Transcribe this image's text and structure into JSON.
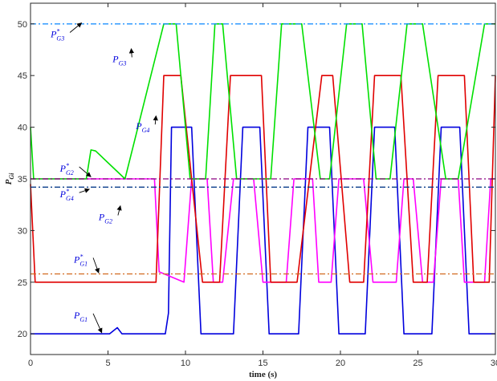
{
  "chart_data": {
    "type": "line",
    "title": "",
    "xlabel": "time (s)",
    "ylabel": {
      "main": "P",
      "sub": "Gi"
    },
    "xlim": [
      0,
      30
    ],
    "ylim": [
      18,
      52
    ],
    "xticks": [
      0,
      5,
      10,
      15,
      20,
      25,
      30
    ],
    "yticks": [
      20,
      25,
      30,
      35,
      40,
      45,
      50
    ],
    "grid": false,
    "legend": "none",
    "series": [
      {
        "key": "g1",
        "color": "#0000dd",
        "x": [
          0,
          5.1,
          5.6,
          5.9,
          8.7,
          8.9,
          9.1,
          9.3,
          10.4,
          11.0,
          13.1,
          13.7,
          14.8,
          15.4,
          17.3,
          17.9,
          19.3,
          19.9,
          21.6,
          22.2,
          23.5,
          24.1,
          25.9,
          26.5,
          27.7,
          28.3,
          29.6,
          29.9,
          30
        ],
        "y": [
          20,
          20,
          20.6,
          20,
          20,
          22,
          40,
          40,
          40,
          20,
          20,
          40,
          40,
          20,
          20,
          40,
          40,
          20,
          20,
          40,
          40,
          20,
          20,
          40,
          40,
          20,
          20,
          20,
          20
        ]
      },
      {
        "key": "g2",
        "color": "#ff00ff",
        "x": [
          0,
          5.4,
          5.8,
          8.0,
          8.3,
          9.9,
          10.4,
          11.4,
          11.8,
          12.4,
          13.1,
          14.4,
          15.0,
          16.5,
          17.0,
          18.2,
          18.6,
          19.4,
          19.9,
          21.5,
          22.1,
          23.6,
          24.1,
          24.7,
          25.3,
          26.0,
          26.5,
          27.6,
          28.0,
          29.3,
          29.7,
          30
        ],
        "y": [
          35,
          35,
          35,
          35,
          26,
          25,
          35,
          35,
          25,
          25,
          35,
          35,
          25,
          25,
          35,
          35,
          25,
          25,
          35,
          35,
          25,
          25,
          35,
          35,
          25,
          25,
          35,
          35,
          25,
          25,
          35,
          35
        ]
      },
      {
        "key": "g4",
        "color": "#e00000",
        "x": [
          0,
          0.3,
          8.1,
          8.6,
          9.7,
          11.1,
          12.2,
          12.9,
          14.9,
          15.5,
          17.2,
          18.8,
          19.5,
          20.6,
          21.5,
          22.2,
          23.9,
          24.7,
          25.6,
          26.3,
          28.0,
          28.6,
          29.6,
          30
        ],
        "y": [
          34.5,
          25,
          25,
          45,
          45,
          25,
          25,
          45,
          45,
          25,
          25,
          45,
          45,
          25,
          25,
          45,
          45,
          25,
          25,
          45,
          45,
          25,
          25,
          45
        ]
      },
      {
        "key": "g3",
        "color": "#00e000",
        "x": [
          0,
          0.2,
          3.6,
          3.9,
          4.2,
          6.1,
          8.6,
          9.4,
          10.3,
          11.3,
          11.9,
          12.4,
          13.3,
          15.5,
          16.2,
          17.5,
          18.7,
          19.3,
          20.4,
          21.4,
          22.3,
          23.2,
          24.3,
          25.3,
          26.8,
          27.6,
          29.3,
          30
        ],
        "y": [
          40,
          35,
          35,
          37.8,
          37.7,
          35,
          50,
          50,
          35,
          35,
          50,
          50,
          35,
          35,
          50,
          50,
          35,
          35,
          50,
          50,
          35,
          35,
          50,
          50,
          35,
          35,
          50,
          50
        ]
      },
      {
        "key": "g3ref",
        "color": "#1e90ff",
        "dash": "7 3 2 3",
        "x": [
          0,
          30
        ],
        "y": [
          50,
          50
        ]
      },
      {
        "key": "g2ref",
        "color": "#8b0080",
        "dash": "7 3 2 3",
        "x": [
          0,
          30
        ],
        "y": [
          35,
          35
        ]
      },
      {
        "key": "g4ref",
        "color": "#0a3d8a",
        "dash": "7 3 2 3",
        "x": [
          0,
          30
        ],
        "y": [
          34.2,
          34.2
        ]
      },
      {
        "key": "g1ref",
        "color": "#d2691e",
        "dash": "7 3 2 3",
        "x": [
          0,
          30
        ],
        "y": [
          25.8,
          25.8
        ]
      }
    ],
    "annotations": [
      {
        "main": "P",
        "sub": "G3",
        "star": true,
        "color": "#0000dd",
        "text_x": 1.3,
        "text_y": 48.7,
        "arrow_x": 3.3,
        "arrow_y": 50.1
      },
      {
        "main": "P",
        "sub": "G3",
        "star": false,
        "color": "#0000dd",
        "text_x": 5.3,
        "text_y": 46.3,
        "arrow_x": 6.5,
        "arrow_y": 47.6
      },
      {
        "main": "P",
        "sub": "G4",
        "star": false,
        "color": "#0000dd",
        "text_x": 6.8,
        "text_y": 39.8,
        "arrow_x": 8.1,
        "arrow_y": 41.1
      },
      {
        "main": "P",
        "sub": "G2",
        "star": true,
        "color": "#0000dd",
        "text_x": 1.9,
        "text_y": 35.7,
        "arrow_x": 3.9,
        "arrow_y": 35.2
      },
      {
        "main": "P",
        "sub": "G4",
        "star": true,
        "color": "#0000dd",
        "text_x": 1.9,
        "text_y": 33.2,
        "arrow_x": 3.8,
        "arrow_y": 34.0
      },
      {
        "main": "P",
        "sub": "G2",
        "star": false,
        "color": "#0000dd",
        "text_x": 4.4,
        "text_y": 31.0,
        "arrow_x": 5.8,
        "arrow_y": 32.4
      },
      {
        "main": "P",
        "sub": "G1",
        "star": true,
        "color": "#0000dd",
        "text_x": 2.8,
        "text_y": 26.9,
        "arrow_x": 4.4,
        "arrow_y": 25.9
      },
      {
        "main": "P",
        "sub": "G1",
        "star": false,
        "color": "#0000dd",
        "text_x": 2.8,
        "text_y": 21.5,
        "arrow_x": 4.6,
        "arrow_y": 20.1
      }
    ]
  }
}
